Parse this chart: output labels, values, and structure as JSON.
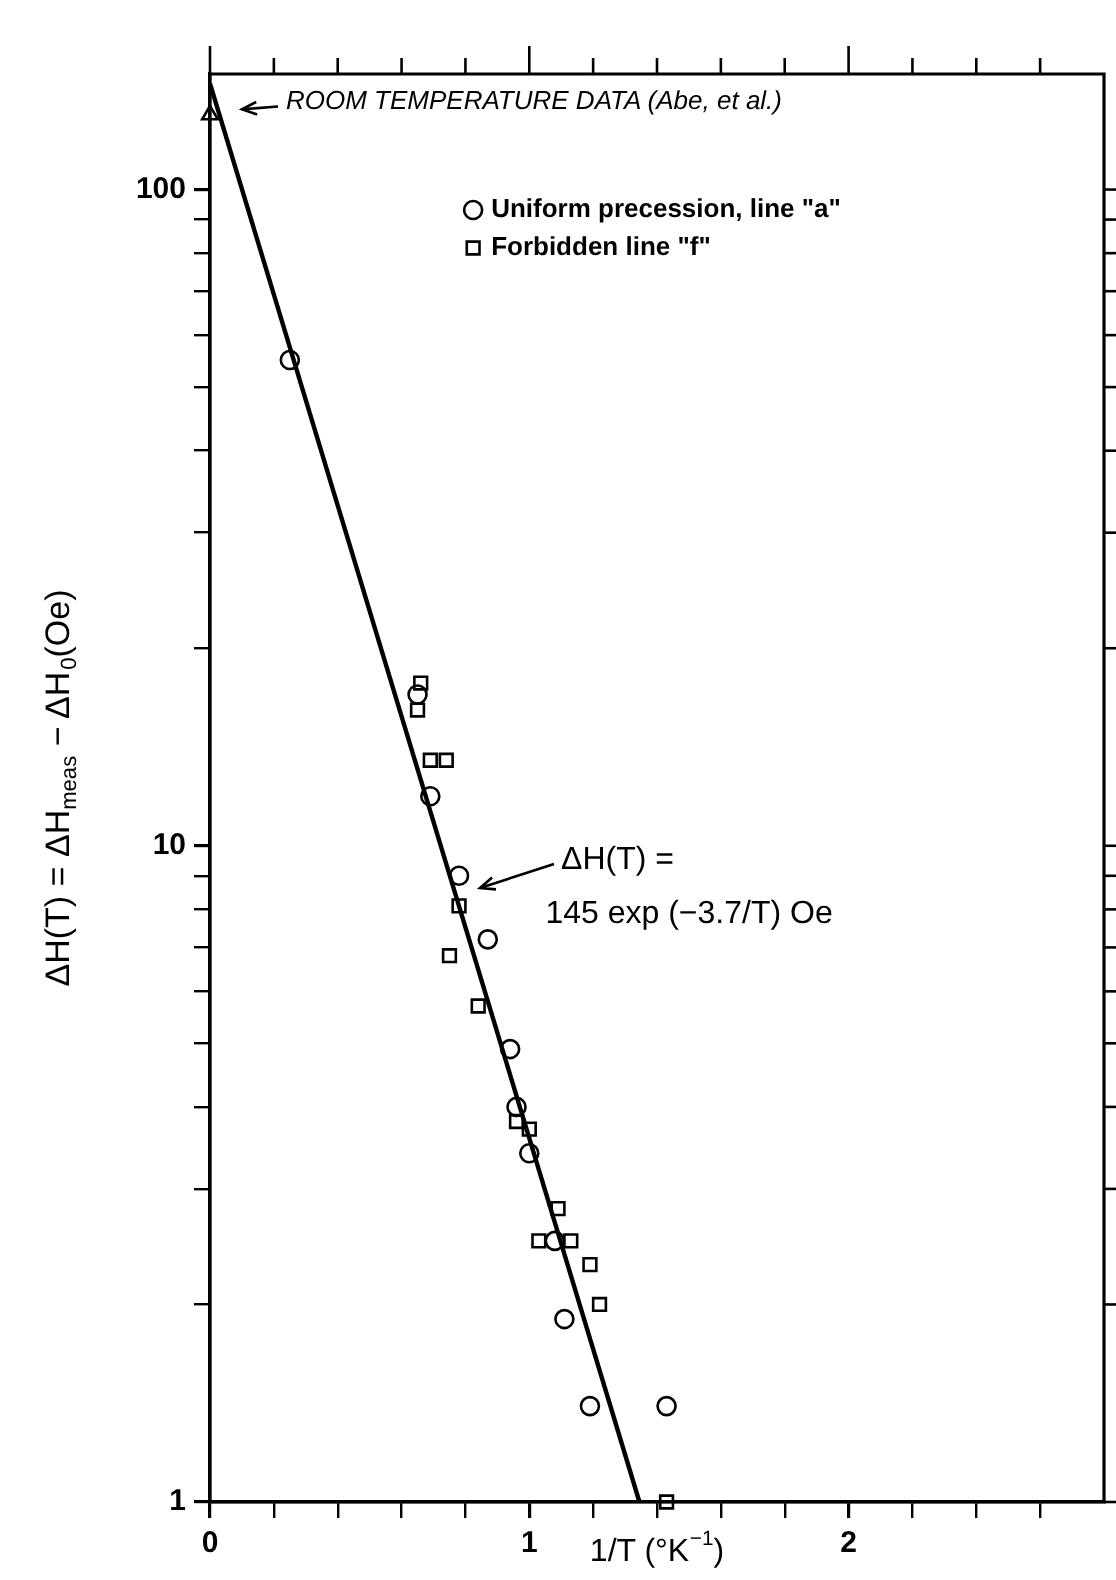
{
  "chart_data": {
    "type": "scatter",
    "xlabel": "1/T (°K$^{−1}$)",
    "ylabel": "ΔH(T) = ΔH$_{meas}$ − ΔH$_{0}$(Oe)",
    "log": "y",
    "grid": false,
    "legend": "top",
    "xlim": [
      0,
      2.8
    ],
    "ylim": [
      1,
      150
    ],
    "xticks": [
      0,
      {
        "value": 0.2,
        "label": null
      },
      {
        "value": 0.4,
        "label": null
      },
      {
        "value": 0.6,
        "label": null
      },
      {
        "value": 0.8,
        "label": null
      },
      1,
      {
        "value": 1.2,
        "label": null
      },
      {
        "value": 1.4,
        "label": null
      },
      {
        "value": 1.6,
        "label": null
      },
      {
        "value": 1.8,
        "label": null
      },
      2,
      {
        "value": 2.2,
        "label": null
      },
      {
        "value": 2.4,
        "label": null
      },
      {
        "value": 2.6,
        "label": null
      }
    ],
    "yticks": [
      1,
      {
        "value": 2,
        "label": null
      },
      {
        "value": 3,
        "label": null
      },
      {
        "value": 4,
        "label": null
      },
      {
        "value": 5,
        "label": null
      },
      {
        "value": 6,
        "label": null
      },
      {
        "value": 7,
        "label": null
      },
      {
        "value": 8,
        "label": null
      },
      {
        "value": 9,
        "label": null
      },
      10,
      {
        "value": 20,
        "label": null
      },
      {
        "value": 30,
        "label": null
      },
      {
        "value": 40,
        "label": null
      },
      {
        "value": 50,
        "label": null
      },
      {
        "value": 60,
        "label": null
      },
      {
        "value": 70,
        "label": null
      },
      {
        "value": 80,
        "label": null
      },
      {
        "value": 90,
        "label": null
      },
      100
    ],
    "series": [
      {
        "name": "Uniform precession, line \"a\"",
        "color": "#000000",
        "marker": "circle",
        "x": [
          0.25,
          0.65,
          0.69,
          0.78,
          0.87,
          0.94,
          0.96,
          1.0,
          1.08,
          1.11,
          1.19,
          1.43
        ],
        "values": [
          55,
          17,
          11.9,
          9,
          7.2,
          4.9,
          4.0,
          3.4,
          2.5,
          1.9,
          1.4,
          1.4
        ]
      },
      {
        "name": "Forbidden line \"f\"",
        "color": "#000000",
        "marker": "square",
        "x": [
          0.66,
          0.65,
          0.69,
          0.74,
          0.78,
          0.75,
          0.84,
          0.96,
          1.0,
          1.09,
          1.03,
          1.13,
          1.19,
          1.22,
          1.43
        ],
        "values": [
          17.7,
          16.1,
          13.5,
          13.5,
          8.1,
          6.8,
          5.7,
          3.8,
          3.7,
          2.8,
          2.5,
          2.5,
          2.3,
          2.0,
          1.0
        ]
      },
      {
        "color": "#000000",
        "marker": "triangle",
        "x": [
          0
        ],
        "values": [
          130
        ]
      },
      {
        "type": "line",
        "color": "#000000",
        "marker": "none",
        "line_style": "solid",
        "x": [
          0,
          1.345
        ],
        "values": [
          145,
          1
        ]
      }
    ],
    "annotations": [
      {
        "text": "ROOM TEMPERATURE DATA (Abe, et al.)",
        "x": 0,
        "y": 130
      },
      {
        "text": "ΔH(T) =\n145 exp (−3.7/T) Oe",
        "x": 0.78,
        "y": 9
      }
    ]
  }
}
